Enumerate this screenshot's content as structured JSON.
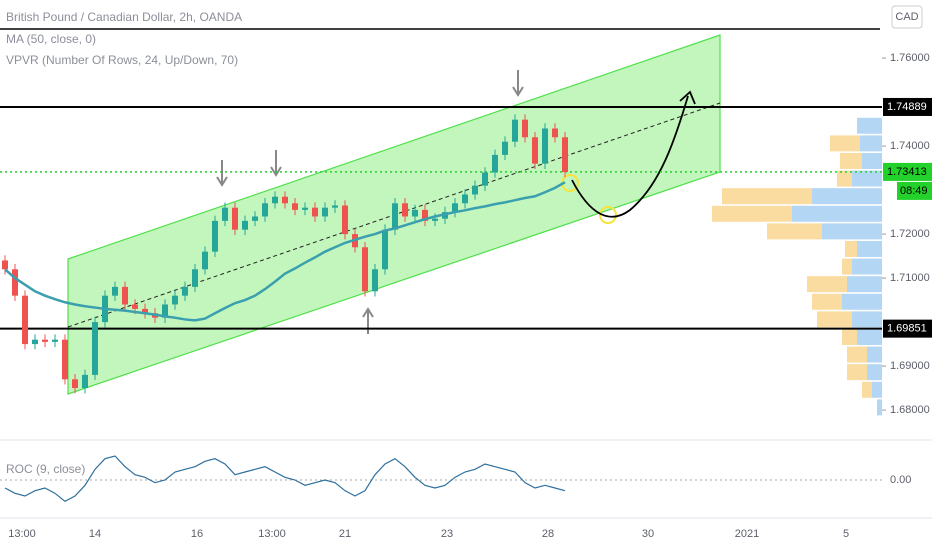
{
  "chart_data": {
    "type": "candlestick",
    "title": "British Pound / Canadian Dollar, 2h, OANDA",
    "indicators": [
      "MA (50, close, 0)",
      "VPVR (Number Of Rows, 24, Up/Down, 70)"
    ],
    "currency": "CAD",
    "countdown": "08:49",
    "up_color": "#26a69a",
    "down_color": "#ef5350",
    "ma_color": "#3a9fae",
    "opens": [
      1.714,
      1.712,
      1.706,
      1.695,
      1.696,
      1.6955,
      1.696,
      1.687,
      1.685,
      1.688,
      1.7,
      1.706,
      1.708,
      1.704,
      1.703,
      1.702,
      1.701,
      1.704,
      1.706,
      1.708,
      1.712,
      1.716,
      1.723,
      1.726,
      1.721,
      1.723,
      1.724,
      1.727,
      1.7285,
      1.727,
      1.7255,
      1.726,
      1.724,
      1.726,
      1.7265,
      1.72,
      1.717,
      1.707,
      1.712,
      1.721,
      1.727,
      1.724,
      1.7255,
      1.723,
      1.7235,
      1.725,
      1.727,
      1.729,
      1.731,
      1.734,
      1.738,
      1.741,
      1.746,
      1.742,
      1.736,
      1.744,
      1.742
    ],
    "highs": [
      1.7152,
      1.7132,
      1.7072,
      1.6972,
      1.6972,
      1.6972,
      1.6972,
      1.6882,
      1.6892,
      1.7012,
      1.7072,
      1.7092,
      1.7092,
      1.7052,
      1.7042,
      1.7032,
      1.7052,
      1.7072,
      1.7092,
      1.7132,
      1.7172,
      1.7242,
      1.7272,
      1.7272,
      1.7242,
      1.7252,
      1.7282,
      1.7297,
      1.7297,
      1.7282,
      1.7272,
      1.7272,
      1.7272,
      1.7277,
      1.7277,
      1.7212,
      1.7182,
      1.7132,
      1.7222,
      1.7282,
      1.7282,
      1.7267,
      1.7267,
      1.7247,
      1.7262,
      1.7282,
      1.7302,
      1.7322,
      1.7352,
      1.7392,
      1.7422,
      1.7472,
      1.7472,
      1.7432,
      1.7452,
      1.7452,
      1.7432
    ],
    "lows": [
      1.7108,
      1.7048,
      1.6938,
      1.6938,
      1.6943,
      1.6943,
      1.6858,
      1.6838,
      1.6838,
      1.6868,
      1.6988,
      1.7048,
      1.7028,
      1.7018,
      1.7008,
      1.6998,
      1.6998,
      1.7028,
      1.7048,
      1.7068,
      1.7108,
      1.7148,
      1.7218,
      1.7198,
      1.7198,
      1.7218,
      1.7228,
      1.7258,
      1.7258,
      1.7243,
      1.7243,
      1.7228,
      1.7228,
      1.7248,
      1.7188,
      1.7158,
      1.7058,
      1.7058,
      1.7108,
      1.7198,
      1.7228,
      1.7228,
      1.7218,
      1.7218,
      1.7223,
      1.7238,
      1.7258,
      1.7278,
      1.7298,
      1.7328,
      1.7368,
      1.7398,
      1.7408,
      1.7348,
      1.7348,
      1.7408,
      1.7329
    ],
    "closes": [
      1.712,
      1.706,
      1.695,
      1.696,
      1.6955,
      1.696,
      1.687,
      1.685,
      1.688,
      1.7,
      1.706,
      1.708,
      1.704,
      1.703,
      1.702,
      1.701,
      1.704,
      1.706,
      1.708,
      1.712,
      1.716,
      1.723,
      1.726,
      1.721,
      1.723,
      1.724,
      1.727,
      1.7285,
      1.727,
      1.7255,
      1.726,
      1.724,
      1.726,
      1.7265,
      1.72,
      1.717,
      1.707,
      1.712,
      1.721,
      1.727,
      1.724,
      1.7255,
      1.723,
      1.7235,
      1.725,
      1.727,
      1.729,
      1.731,
      1.734,
      1.738,
      1.741,
      1.746,
      1.742,
      1.736,
      1.744,
      1.742,
      1.7341
    ],
    "ma_values": [
      1.712,
      1.71,
      1.7085,
      1.707,
      1.706,
      1.7052,
      1.7045,
      1.704,
      1.7036,
      1.7033,
      1.703,
      1.7028,
      1.7026,
      1.7023,
      1.702,
      1.7017,
      1.7013,
      1.701,
      1.7006,
      1.7004,
      1.7008,
      1.702,
      1.7032,
      1.7043,
      1.705,
      1.706,
      1.7075,
      1.7092,
      1.711,
      1.7122,
      1.7135,
      1.7147,
      1.716,
      1.717,
      1.718,
      1.7187,
      1.7194,
      1.72,
      1.7208,
      1.7213,
      1.722,
      1.7227,
      1.7234,
      1.724,
      1.7245,
      1.725,
      1.7254,
      1.7259,
      1.7263,
      1.7268,
      1.7272,
      1.7277,
      1.7282,
      1.7286,
      1.7295,
      1.7305,
      1.7318
    ],
    "ylim": [
      1.6732,
      1.7732
    ],
    "yticks": [
      {
        "value": 1.76,
        "label": "1.76000"
      },
      {
        "value": 1.74,
        "label": "1.74000"
      },
      {
        "value": 1.72,
        "label": "1.72000"
      },
      {
        "value": 1.71,
        "label": "1.71000"
      },
      {
        "value": 1.69,
        "label": "1.69000"
      },
      {
        "value": 1.68,
        "label": "1.68000"
      }
    ],
    "price_levels": [
      1.74889,
      1.69851
    ],
    "last_price": 1.73413,
    "x_labels": [
      "13:00",
      "14",
      "16",
      "13:00",
      "21",
      "23",
      "28",
      "30",
      "2021",
      "5"
    ],
    "volume_profile": {
      "up_color": "#b3d6f5",
      "down_color": "#fbdca0",
      "prices": [
        1.7445,
        1.7405,
        1.7365,
        1.7325,
        1.7285,
        1.7245,
        1.7205,
        1.7165,
        1.7125,
        1.7085,
        1.7045,
        1.7005,
        1.6965,
        1.6925,
        1.6885,
        1.6845,
        1.6805
      ],
      "up": [
        25,
        22,
        20,
        30,
        70,
        90,
        60,
        25,
        30,
        35,
        40,
        30,
        25,
        15,
        15,
        10,
        5
      ],
      "down": [
        0,
        30,
        22,
        15,
        90,
        80,
        55,
        12,
        10,
        40,
        30,
        35,
        15,
        20,
        20,
        10,
        0
      ]
    },
    "roc": {
      "title": "ROC (9, close)",
      "color": "#2e6f9e",
      "values": [
        -0.3,
        -0.5,
        -0.6,
        -0.4,
        -0.3,
        -0.5,
        -0.8,
        -0.6,
        -0.2,
        0.4,
        0.8,
        0.9,
        0.5,
        0.2,
        0.1,
        -0.1,
        0.0,
        0.3,
        0.4,
        0.5,
        0.7,
        0.8,
        0.6,
        0.2,
        0.3,
        0.4,
        0.5,
        0.3,
        0.1,
        0.0,
        -0.2,
        -0.1,
        0.0,
        -0.1,
        -0.4,
        -0.6,
        -0.4,
        0.2,
        0.6,
        0.8,
        0.5,
        0.1,
        -0.2,
        -0.3,
        -0.2,
        0.1,
        0.3,
        0.4,
        0.6,
        0.5,
        0.4,
        0.3,
        -0.1,
        -0.3,
        -0.2,
        -0.3,
        -0.4
      ],
      "ylim": [
        -1.5,
        1.5
      ],
      "yticks": [
        {
          "value": 0,
          "label": "0.00"
        }
      ]
    }
  }
}
